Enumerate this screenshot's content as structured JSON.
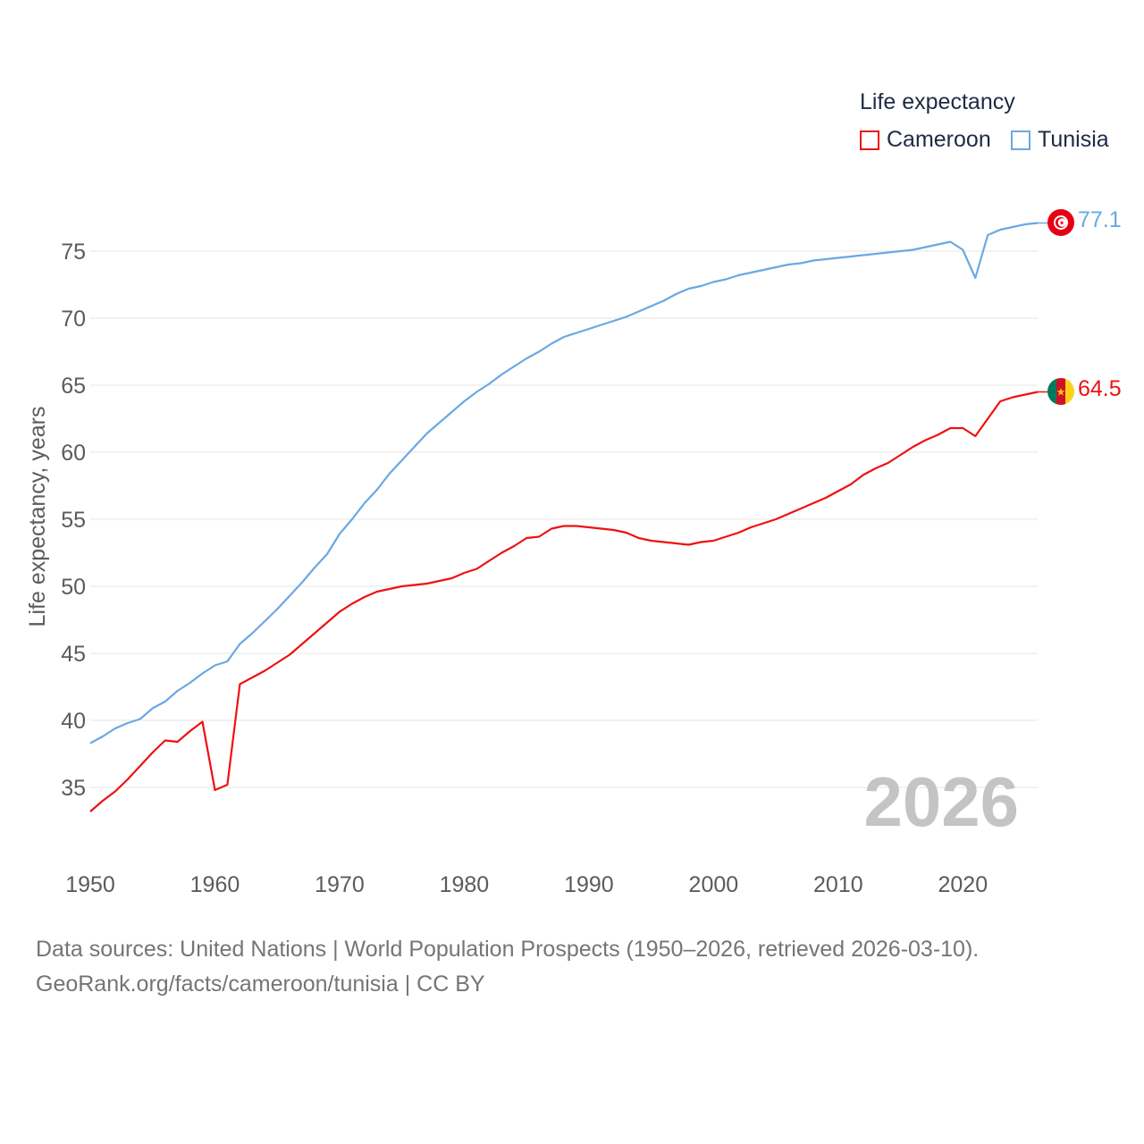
{
  "legend": {
    "title": "Life expectancy",
    "items": [
      {
        "label": "Cameroon",
        "color": "#ee1111"
      },
      {
        "label": "Tunisia",
        "color": "#6aa8e3"
      }
    ]
  },
  "year_watermark": "2026",
  "end_labels": {
    "cameroon": "64.5",
    "tunisia": "77.1"
  },
  "flags": {
    "cameroon": "cameroon-flag-icon",
    "tunisia": "tunisia-flag-icon"
  },
  "footer": {
    "source_line": "Data sources: United Nations | World Population Prospects (1950–2026, retrieved 2026-03-10).",
    "credit_line": "GeoRank.org/facts/cameroon/tunisia | CC BY"
  },
  "chart_data": {
    "type": "line",
    "ylabel": "Life expectancy, years",
    "xlabel": "",
    "xlim": [
      1950,
      2026
    ],
    "ylim": [
      31,
      78
    ],
    "x_ticks": [
      1950,
      1960,
      1970,
      1980,
      1990,
      2000,
      2010,
      2020
    ],
    "y_ticks": [
      35,
      40,
      45,
      50,
      55,
      60,
      65,
      70,
      75
    ],
    "grid": true,
    "x": [
      1950,
      1951,
      1952,
      1953,
      1954,
      1955,
      1956,
      1957,
      1958,
      1959,
      1960,
      1961,
      1962,
      1963,
      1964,
      1965,
      1966,
      1967,
      1968,
      1969,
      1970,
      1971,
      1972,
      1973,
      1974,
      1975,
      1976,
      1977,
      1978,
      1979,
      1980,
      1981,
      1982,
      1983,
      1984,
      1985,
      1986,
      1987,
      1988,
      1989,
      1990,
      1991,
      1992,
      1993,
      1994,
      1995,
      1996,
      1997,
      1998,
      1999,
      2000,
      2001,
      2002,
      2003,
      2004,
      2005,
      2006,
      2007,
      2008,
      2009,
      2010,
      2011,
      2012,
      2013,
      2014,
      2015,
      2016,
      2017,
      2018,
      2019,
      2020,
      2021,
      2022,
      2023,
      2024,
      2025,
      2026
    ],
    "series": [
      {
        "name": "Cameroon",
        "color": "#ee1111",
        "values": [
          33.2,
          34.0,
          34.7,
          35.6,
          36.6,
          37.6,
          38.5,
          38.4,
          39.2,
          39.9,
          34.8,
          35.2,
          42.7,
          43.2,
          43.7,
          44.3,
          44.9,
          45.7,
          46.5,
          47.3,
          48.1,
          48.7,
          49.2,
          49.6,
          49.8,
          50.0,
          50.1,
          50.2,
          50.4,
          50.6,
          51.0,
          51.3,
          51.9,
          52.5,
          53.0,
          53.6,
          53.7,
          54.3,
          54.5,
          54.5,
          54.4,
          54.3,
          54.2,
          54.0,
          53.6,
          53.4,
          53.3,
          53.2,
          53.1,
          53.3,
          53.4,
          53.7,
          54.0,
          54.4,
          54.7,
          55.0,
          55.4,
          55.8,
          56.2,
          56.6,
          57.1,
          57.6,
          58.3,
          58.8,
          59.2,
          59.8,
          60.4,
          60.9,
          61.3,
          61.8,
          61.8,
          61.2,
          62.5,
          63.8,
          64.1,
          64.3,
          64.5
        ]
      },
      {
        "name": "Tunisia",
        "color": "#6aa8e3",
        "values": [
          38.3,
          38.8,
          39.4,
          39.8,
          40.1,
          40.9,
          41.4,
          42.2,
          42.8,
          43.5,
          44.1,
          44.4,
          45.7,
          46.5,
          47.4,
          48.3,
          49.3,
          50.3,
          51.4,
          52.4,
          53.9,
          55.0,
          56.2,
          57.2,
          58.4,
          59.4,
          60.4,
          61.4,
          62.2,
          63.0,
          63.8,
          64.5,
          65.1,
          65.8,
          66.4,
          67.0,
          67.5,
          68.1,
          68.6,
          68.9,
          69.2,
          69.5,
          69.8,
          70.1,
          70.5,
          70.9,
          71.3,
          71.8,
          72.2,
          72.4,
          72.7,
          72.9,
          73.2,
          73.4,
          73.6,
          73.8,
          74.0,
          74.1,
          74.3,
          74.4,
          74.5,
          74.6,
          74.7,
          74.8,
          74.9,
          75.0,
          75.1,
          75.3,
          75.5,
          75.7,
          75.1,
          73.0,
          76.2,
          76.6,
          76.8,
          77.0,
          77.1
        ]
      }
    ]
  }
}
